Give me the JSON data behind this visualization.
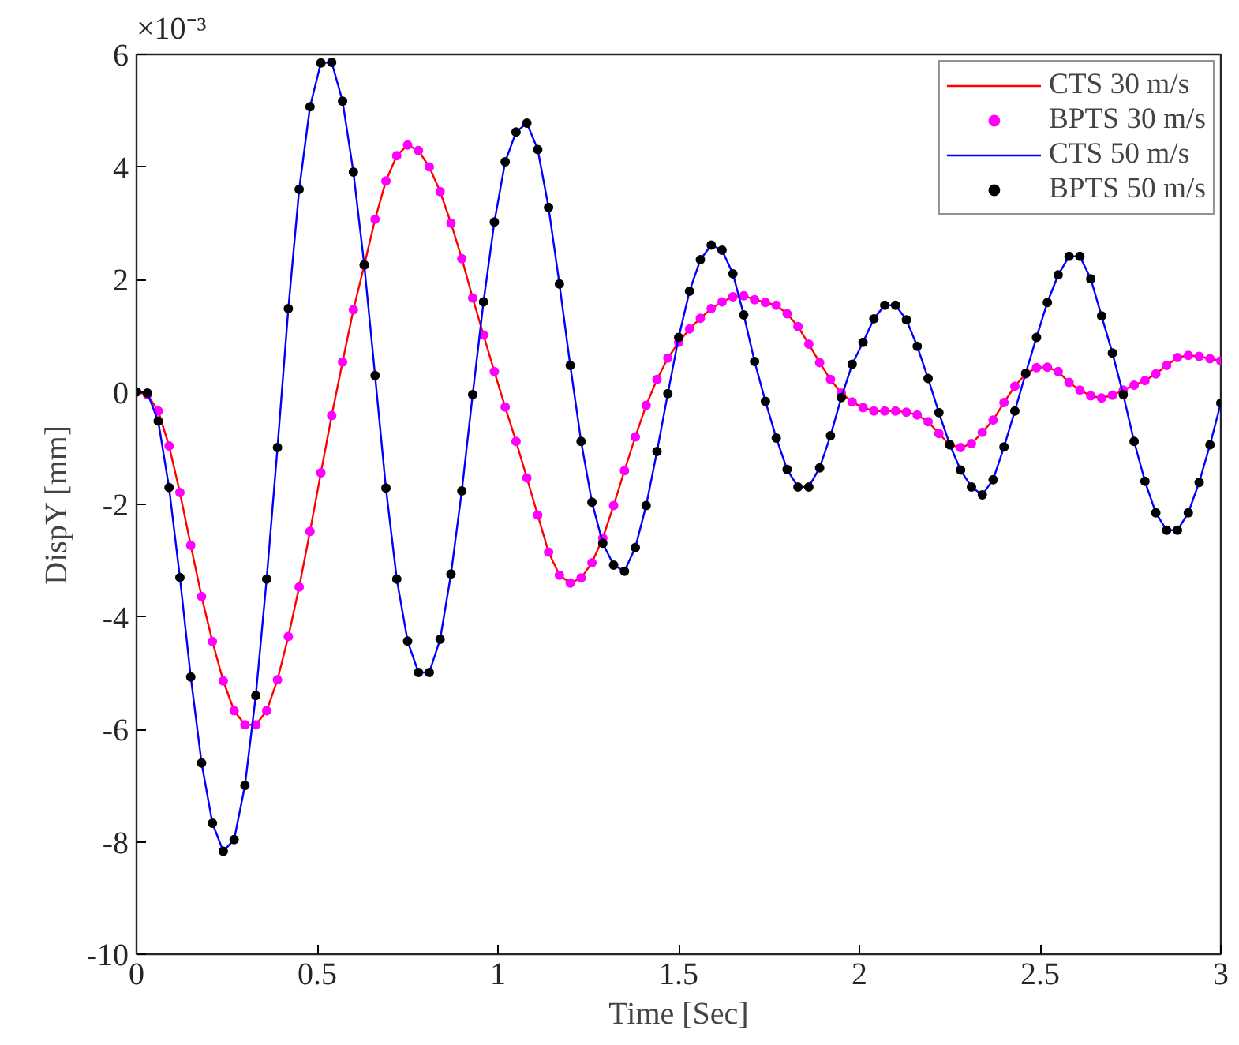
{
  "chart_data": {
    "type": "line",
    "xlabel": "Time [Sec]",
    "ylabel": "DispY [mm]",
    "annotations": [
      "×10⁻³"
    ],
    "x": [
      0,
      0.03,
      0.06,
      0.09,
      0.12,
      0.15,
      0.18,
      0.21,
      0.24,
      0.27,
      0.3,
      0.33,
      0.36,
      0.39,
      0.42,
      0.45,
      0.48,
      0.51,
      0.54,
      0.57,
      0.6,
      0.63,
      0.66,
      0.69,
      0.72,
      0.75,
      0.78,
      0.81,
      0.84,
      0.87,
      0.9,
      0.93,
      0.96,
      0.99,
      1.02,
      1.05,
      1.08,
      1.11,
      1.14,
      1.17,
      1.2,
      1.23,
      1.26,
      1.29,
      1.32,
      1.35,
      1.38,
      1.41,
      1.44,
      1.47,
      1.5,
      1.53,
      1.56,
      1.59,
      1.62,
      1.65,
      1.68,
      1.71,
      1.74,
      1.77,
      1.8,
      1.83,
      1.86,
      1.89,
      1.92,
      1.95,
      1.98,
      2.01,
      2.04,
      2.07,
      2.1,
      2.13,
      2.16,
      2.19,
      2.22,
      2.25,
      2.28,
      2.31,
      2.34,
      2.37,
      2.4,
      2.43,
      2.46,
      2.49,
      2.52,
      2.55,
      2.58,
      2.61,
      2.64,
      2.67,
      2.7,
      2.73,
      2.76,
      2.79,
      2.82,
      2.85,
      2.88,
      2.91,
      2.94,
      2.97,
      3.0
    ],
    "series": [
      {
        "name": "CTS 30 m/s",
        "marker": "none",
        "color": "#ff0000",
        "values": [
          0,
          -0.05,
          -0.34,
          -0.96,
          -1.79,
          -2.73,
          -3.64,
          -4.44,
          -5.14,
          -5.67,
          -5.92,
          -5.92,
          -5.67,
          -5.12,
          -4.35,
          -3.47,
          -2.48,
          -1.44,
          -0.42,
          0.53,
          1.46,
          2.25,
          3.07,
          3.75,
          4.2,
          4.39,
          4.29,
          4.0,
          3.56,
          3.0,
          2.37,
          1.67,
          1.01,
          0.36,
          -0.27,
          -0.88,
          -1.53,
          -2.19,
          -2.85,
          -3.26,
          -3.4,
          -3.31,
          -3.04,
          -2.6,
          -2.02,
          -1.4,
          -0.8,
          -0.24,
          0.22,
          0.6,
          0.88,
          1.12,
          1.31,
          1.48,
          1.6,
          1.69,
          1.71,
          1.64,
          1.59,
          1.54,
          1.39,
          1.16,
          0.85,
          0.52,
          0.22,
          -0.02,
          -0.18,
          -0.28,
          -0.34,
          -0.34,
          -0.34,
          -0.36,
          -0.41,
          -0.53,
          -0.74,
          -0.94,
          -0.99,
          -0.92,
          -0.72,
          -0.5,
          -0.19,
          0.1,
          0.32,
          0.43,
          0.44,
          0.36,
          0.17,
          0.03,
          -0.07,
          -0.11,
          -0.06,
          0.03,
          0.12,
          0.2,
          0.32,
          0.47,
          0.61,
          0.65,
          0.63,
          0.59,
          0.55
        ]
      },
      {
        "name": "BPTS 30 m/s",
        "type": "scatter",
        "marker": "circle",
        "color": "#ff00ff",
        "values": [
          0,
          -0.05,
          -0.34,
          -0.96,
          -1.79,
          -2.73,
          -3.64,
          -4.44,
          -5.14,
          -5.67,
          -5.92,
          -5.92,
          -5.67,
          -5.12,
          -4.35,
          -3.47,
          -2.48,
          -1.44,
          -0.42,
          0.53,
          1.46,
          2.25,
          3.07,
          3.75,
          4.2,
          4.39,
          4.29,
          4.0,
          3.56,
          3.0,
          2.37,
          1.67,
          1.01,
          0.36,
          -0.27,
          -0.88,
          -1.53,
          -2.19,
          -2.85,
          -3.26,
          -3.4,
          -3.31,
          -3.04,
          -2.6,
          -2.02,
          -1.4,
          -0.8,
          -0.24,
          0.22,
          0.6,
          0.88,
          1.12,
          1.31,
          1.48,
          1.6,
          1.69,
          1.71,
          1.64,
          1.59,
          1.54,
          1.39,
          1.16,
          0.85,
          0.52,
          0.22,
          -0.02,
          -0.18,
          -0.28,
          -0.34,
          -0.34,
          -0.34,
          -0.36,
          -0.41,
          -0.53,
          -0.74,
          -0.94,
          -0.99,
          -0.92,
          -0.72,
          -0.5,
          -0.19,
          0.1,
          0.32,
          0.43,
          0.44,
          0.36,
          0.17,
          0.03,
          -0.07,
          -0.11,
          -0.06,
          0.03,
          0.12,
          0.2,
          0.32,
          0.47,
          0.61,
          0.65,
          0.63,
          0.59,
          0.55
        ]
      },
      {
        "name": "CTS 50 m/s",
        "marker": "none",
        "color": "#0000ff",
        "values": [
          0,
          -0.02,
          -0.52,
          -1.7,
          -3.3,
          -5.07,
          -6.6,
          -7.67,
          -8.17,
          -7.96,
          -7.0,
          -5.4,
          -3.33,
          -0.99,
          1.48,
          3.6,
          5.07,
          5.85,
          5.86,
          5.17,
          3.91,
          2.26,
          0.29,
          -1.71,
          -3.33,
          -4.43,
          -4.99,
          -4.99,
          -4.4,
          -3.24,
          -1.76,
          -0.05,
          1.6,
          3.02,
          4.09,
          4.62,
          4.78,
          4.31,
          3.28,
          1.92,
          0.47,
          -0.88,
          -1.96,
          -2.69,
          -3.08,
          -3.19,
          -2.77,
          -2.02,
          -1.06,
          -0.03,
          0.97,
          1.79,
          2.35,
          2.61,
          2.52,
          2.1,
          1.37,
          0.54,
          -0.17,
          -0.82,
          -1.38,
          -1.69,
          -1.69,
          -1.35,
          -0.78,
          -0.1,
          0.49,
          0.88,
          1.3,
          1.54,
          1.54,
          1.28,
          0.81,
          0.24,
          -0.37,
          -0.94,
          -1.39,
          -1.69,
          -1.83,
          -1.56,
          -0.98,
          -0.34,
          0.33,
          0.97,
          1.59,
          2.08,
          2.41,
          2.41,
          2.01,
          1.35,
          0.69,
          -0.05,
          -0.88,
          -1.59,
          -2.15,
          -2.46,
          -2.46,
          -2.15,
          -1.61,
          -0.94,
          -0.2
        ]
      },
      {
        "name": "BPTS 50 m/s",
        "type": "scatter",
        "marker": "circle",
        "color": "#000000",
        "values": [
          0,
          -0.02,
          -0.52,
          -1.7,
          -3.3,
          -5.07,
          -6.6,
          -7.67,
          -8.17,
          -7.96,
          -7.0,
          -5.4,
          -3.33,
          -0.99,
          1.48,
          3.6,
          5.07,
          5.85,
          5.86,
          5.17,
          3.91,
          2.26,
          0.29,
          -1.71,
          -3.33,
          -4.43,
          -4.99,
          -4.99,
          -4.4,
          -3.24,
          -1.76,
          -0.05,
          1.6,
          3.02,
          4.09,
          4.62,
          4.78,
          4.31,
          3.28,
          1.92,
          0.47,
          -0.88,
          -1.96,
          -2.69,
          -3.08,
          -3.19,
          -2.77,
          -2.02,
          -1.06,
          -0.03,
          0.97,
          1.79,
          2.35,
          2.61,
          2.52,
          2.1,
          1.37,
          0.54,
          -0.17,
          -0.82,
          -1.38,
          -1.69,
          -1.69,
          -1.35,
          -0.78,
          -0.1,
          0.49,
          0.88,
          1.3,
          1.54,
          1.54,
          1.28,
          0.81,
          0.24,
          -0.37,
          -0.94,
          -1.39,
          -1.69,
          -1.83,
          -1.56,
          -0.98,
          -0.34,
          0.33,
          0.97,
          1.59,
          2.08,
          2.41,
          2.41,
          2.01,
          1.35,
          0.69,
          -0.05,
          -0.88,
          -1.59,
          -2.15,
          -2.46,
          -2.46,
          -2.15,
          -1.61,
          -0.94,
          -0.2
        ]
      }
    ],
    "xlim": [
      0,
      3
    ],
    "ylim": [
      -10,
      6
    ],
    "xticks": [
      0,
      {
        "value": 0.5,
        "label": "0.5"
      },
      1,
      {
        "value": 1.5,
        "label": "1.5"
      },
      2,
      {
        "value": 2.5,
        "label": "2.5"
      },
      3
    ],
    "yticks": [
      -10,
      -8,
      -6,
      -4,
      -2,
      0,
      2,
      4,
      6
    ],
    "grid": false,
    "legend": "top right",
    "line_style": "solid"
  }
}
